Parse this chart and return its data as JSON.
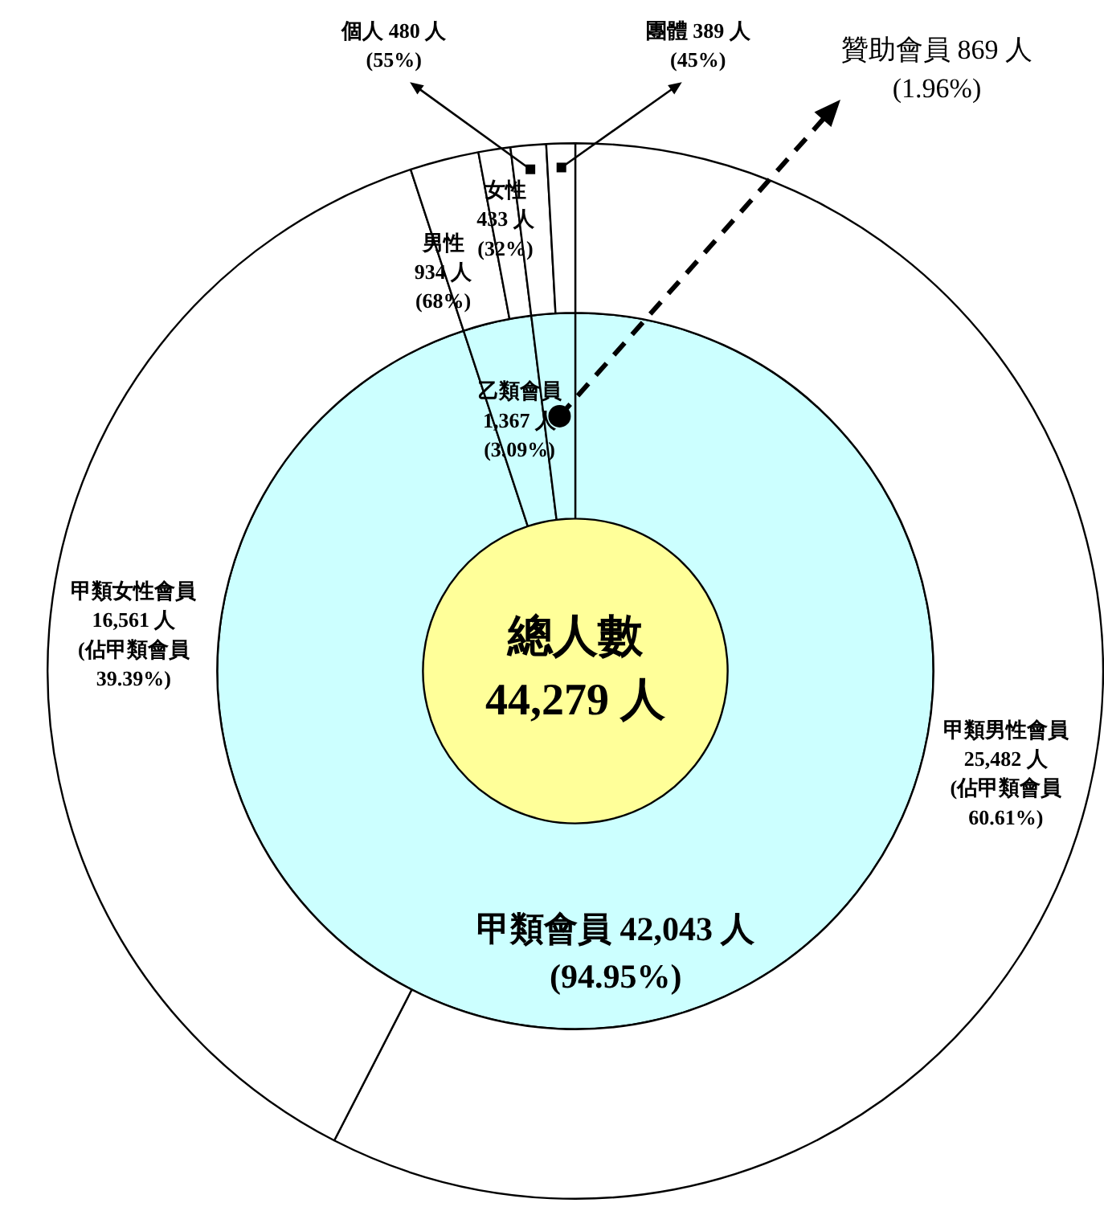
{
  "chart_data": [
    {
      "type": "pie",
      "categories": [
        "總人數"
      ],
      "values": [
        44279
      ],
      "colors": [
        "#ffff99"
      ],
      "value_labels": [
        "44,279 人"
      ]
    },
    {
      "type": "donut",
      "categories": [
        "甲類會員",
        "乙類會員",
        "贊助會員"
      ],
      "values": [
        42043,
        1367,
        869
      ],
      "colors": [
        "#ccffff",
        "#ccffff",
        "#ccffff"
      ],
      "value_labels": [
        "42,043 人\n(94.95%)",
        "1,367 人\n(3.09%)",
        "869 人\n(1.96%)"
      ]
    },
    {
      "type": "donut",
      "categories": [
        "甲類男性會員",
        "甲類女性會員",
        "男性",
        "女性",
        "個人",
        "團體"
      ],
      "values": [
        25482,
        16561,
        934,
        433,
        480,
        389
      ],
      "colors": [
        "#ffffff",
        "#ffffff",
        "#ffffff",
        "#ffffff",
        "#ffffff",
        "#ffffff"
      ],
      "value_labels": [
        "25,482 人\n(佔甲類會員\n60.61%)",
        "16,561 人\n(佔甲類會員\n39.39%)",
        "934 人\n(68%)",
        "433 人\n(32%)",
        "480 人\n(55%)",
        "389 人\n(45%)"
      ]
    }
  ]
}
